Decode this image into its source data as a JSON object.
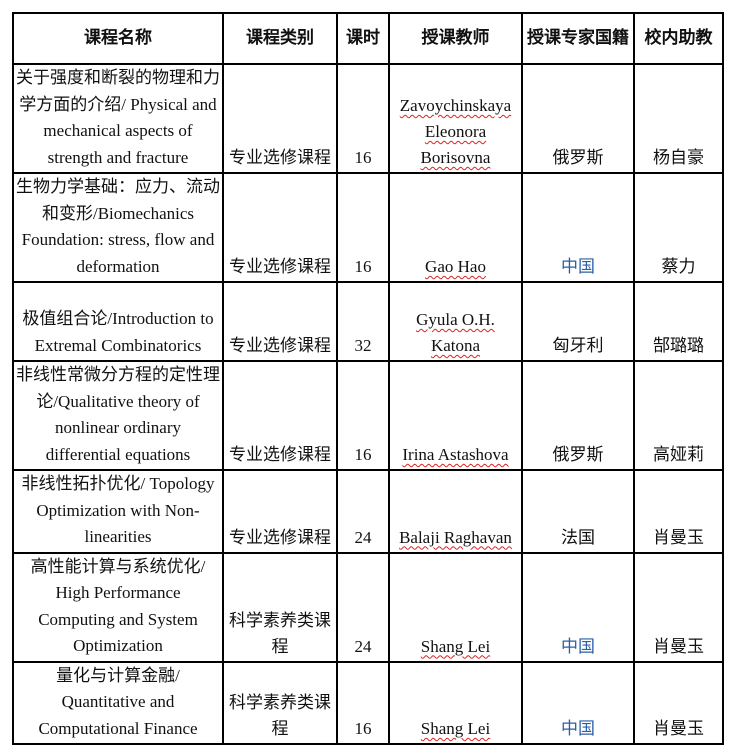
{
  "headers": [
    "课程名称",
    "课程类别",
    "课时",
    "授课教师",
    "授课专家国籍",
    "校内助教"
  ],
  "rows": [
    {
      "name": "关于强度和断裂的物理和力学方面的介绍/ Physical and mechanical aspects of strength and fracture",
      "category": "专业选修课程",
      "hours": "16",
      "teacher": "Zavoychinskaya Eleonora Borisovna",
      "nationality": "俄罗斯",
      "assistant": "杨自豪"
    },
    {
      "name": "生物力学基础：应力、流动和变形/Biomechanics Foundation: stress, flow and deformation",
      "category": "专业选修课程",
      "hours": "16",
      "teacher": "Gao Hao",
      "nationality": "中国",
      "assistant": "蔡力"
    },
    {
      "name": "极值组合论/Introduction to Extremal Combinatorics",
      "category": "专业选修课程",
      "hours": "32",
      "teacher": "Gyula O.H. Katona",
      "nationality": "匈牙利",
      "assistant": "郜璐璐"
    },
    {
      "name": "非线性常微分方程的定性理论/Qualitative theory of nonlinear ordinary differential equations",
      "category": "专业选修课程",
      "hours": "16",
      "teacher": "Irina Astashova",
      "nationality": "俄罗斯",
      "assistant": "高娅莉"
    },
    {
      "name": "非线性拓扑优化/ Topology Optimization with Non-linearities",
      "category": "专业选修课程",
      "hours": "24",
      "teacher": "Balaji Raghavan",
      "nationality": "法国",
      "assistant": "肖曼玉"
    },
    {
      "name": "高性能计算与系统优化/ High Performance Computing and System Optimization",
      "category": "科学素养类课程",
      "hours": "24",
      "teacher": "Shang Lei",
      "nationality": "中国",
      "assistant": "肖曼玉"
    },
    {
      "name": "量化与计算金融/ Quantitative and Computational Finance",
      "category": "科学素养类课程",
      "hours": "16",
      "teacher": "Shang Lei",
      "nationality": "中国",
      "assistant": "肖曼玉"
    }
  ],
  "colors": {
    "china_text": "#2a5fa8",
    "spellcheck": "#d22"
  }
}
